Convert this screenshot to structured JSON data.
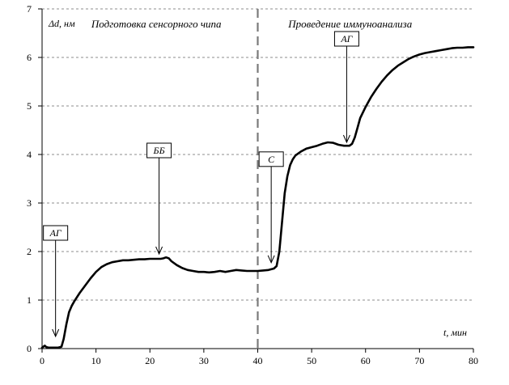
{
  "chart_data": {
    "type": "line",
    "title": "",
    "xlabel": "t, мин",
    "ylabel": "Δd, нм",
    "xlim": [
      0,
      80
    ],
    "ylim": [
      0,
      7
    ],
    "x_ticks": [
      0,
      10,
      20,
      30,
      40,
      50,
      60,
      70,
      80
    ],
    "y_ticks": [
      0,
      1,
      2,
      3,
      4,
      5,
      6,
      7
    ],
    "grid": "horizontal dashed",
    "legend": "none",
    "colors": {
      "line": "#000000",
      "grid": "#8c8c8c",
      "divider": "#7a7a7a"
    },
    "divider_x": 40,
    "phases": [
      {
        "label": "Подготовка сенсорного чипа",
        "x_center": 20
      },
      {
        "label": "Проведение иммуноанализа",
        "x_center": 60
      }
    ],
    "series": [
      {
        "x": [
          0,
          0.5,
          0.8,
          1.2,
          2,
          3,
          3.6,
          4,
          4.5,
          5,
          5.5,
          6,
          7,
          8,
          9,
          10,
          11,
          12,
          13,
          14,
          15,
          16,
          17,
          18,
          19,
          20,
          21,
          22,
          22.5,
          23,
          23.5,
          24,
          25,
          26,
          27,
          28,
          29,
          30,
          31,
          32,
          33,
          34,
          35,
          36,
          37,
          38,
          39,
          40,
          41,
          42,
          43,
          43.5,
          44,
          44.5,
          45,
          45.5,
          46,
          46.5,
          47,
          48,
          49,
          50,
          51,
          52,
          53,
          54,
          55,
          56,
          57,
          57.5,
          58,
          58.5,
          59,
          60,
          61,
          62,
          63,
          64,
          65,
          66,
          67,
          68,
          69,
          70,
          71,
          72,
          73,
          74,
          75,
          76,
          77,
          78,
          79,
          80
        ],
        "y": [
          0.02,
          0.06,
          0.03,
          0.02,
          0.02,
          0.02,
          0.04,
          0.2,
          0.5,
          0.75,
          0.88,
          0.98,
          1.15,
          1.3,
          1.45,
          1.58,
          1.68,
          1.74,
          1.78,
          1.8,
          1.82,
          1.82,
          1.83,
          1.84,
          1.84,
          1.85,
          1.85,
          1.85,
          1.86,
          1.88,
          1.86,
          1.8,
          1.72,
          1.66,
          1.62,
          1.6,
          1.58,
          1.58,
          1.57,
          1.58,
          1.6,
          1.58,
          1.6,
          1.62,
          1.61,
          1.6,
          1.6,
          1.6,
          1.61,
          1.62,
          1.65,
          1.7,
          2.0,
          2.6,
          3.2,
          3.55,
          3.78,
          3.9,
          3.98,
          4.06,
          4.12,
          4.15,
          4.18,
          4.22,
          4.25,
          4.24,
          4.2,
          4.18,
          4.18,
          4.22,
          4.35,
          4.55,
          4.75,
          4.98,
          5.18,
          5.35,
          5.5,
          5.63,
          5.74,
          5.83,
          5.9,
          5.97,
          6.02,
          6.06,
          6.09,
          6.11,
          6.13,
          6.15,
          6.17,
          6.19,
          6.2,
          6.2,
          6.21,
          6.21
        ]
      }
    ],
    "annotations": [
      {
        "label": "АГ",
        "x": 2.5,
        "y": 0.2
      },
      {
        "label": "ББ",
        "x": 21.7,
        "y": 1.9
      },
      {
        "label": "С",
        "x": 42.5,
        "y": 1.72
      },
      {
        "label": "АГ",
        "x": 56.5,
        "y": 4.2
      }
    ]
  }
}
